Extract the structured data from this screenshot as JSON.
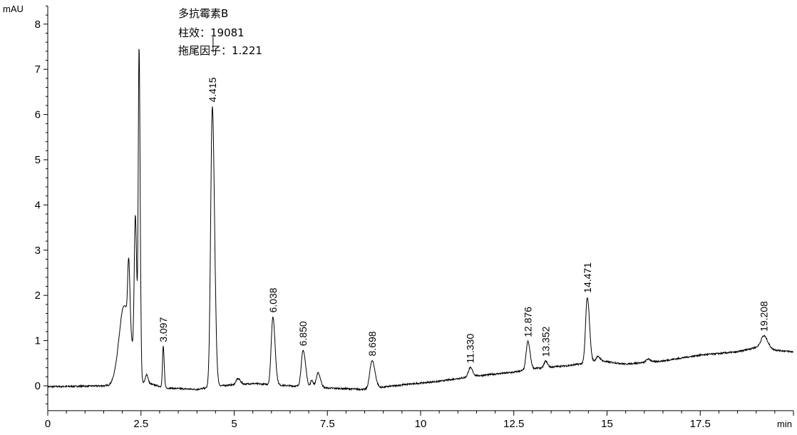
{
  "chart_data": {
    "type": "line",
    "ylabel": "mAU",
    "xlabel": "min",
    "xlim": [
      0,
      20
    ],
    "ylim": [
      -0.55,
      8.4
    ],
    "x_ticks": [
      "0",
      "2.5",
      "5",
      "7.5",
      "10",
      "12.5",
      "15",
      "17.5"
    ],
    "x_tick_values": [
      0,
      2.5,
      5,
      7.5,
      10,
      12.5,
      15,
      17.5
    ],
    "y_ticks": [
      "0",
      "1",
      "2",
      "3",
      "4",
      "5",
      "6",
      "7",
      "8"
    ],
    "y_tick_values": [
      0,
      1,
      2,
      3,
      4,
      5,
      6,
      7,
      8
    ],
    "grid": false,
    "line_color": "#000000",
    "annotation": {
      "lines": [
        "多抗霉素B",
        "柱效：19081",
        "拖尾因子：1.221"
      ],
      "peak": "4.415"
    },
    "baseline": [
      [
        0,
        -0.02
      ],
      [
        1.6,
        0
      ],
      [
        2.7,
        0.05
      ],
      [
        3.2,
        -0.05
      ],
      [
        4,
        -0.08
      ],
      [
        4.6,
        0
      ],
      [
        5.5,
        0.05
      ],
      [
        6.5,
        0.0
      ],
      [
        7.5,
        -0.05
      ],
      [
        8.5,
        -0.08
      ],
      [
        9.5,
        0.02
      ],
      [
        10.5,
        0.1
      ],
      [
        11.5,
        0.22
      ],
      [
        12.5,
        0.3
      ],
      [
        13,
        0.38
      ],
      [
        14,
        0.45
      ],
      [
        14.8,
        0.55
      ],
      [
        15.5,
        0.48
      ],
      [
        16.5,
        0.55
      ],
      [
        17.5,
        0.68
      ],
      [
        18.5,
        0.75
      ],
      [
        19,
        0.85
      ],
      [
        19.4,
        0.8
      ],
      [
        20,
        0.75
      ]
    ],
    "peaks": [
      {
        "rt": 2.05,
        "height": 1.75,
        "width": 0.14
      },
      {
        "rt": 2.17,
        "height": 1.4,
        "width": 0.025
      },
      {
        "rt": 2.35,
        "height": 3.3,
        "width": 0.03
      },
      {
        "rt": 2.45,
        "height": 7.2,
        "width": 0.022
      },
      {
        "rt": 2.65,
        "height": 0.2,
        "width": 0.03
      },
      {
        "rt": 3.097,
        "height": 0.9,
        "width": 0.02,
        "label": "3.097"
      },
      {
        "rt": 4.415,
        "height": 6.2,
        "width": 0.045,
        "label": "4.415"
      },
      {
        "rt": 5.1,
        "height": 0.13,
        "width": 0.05
      },
      {
        "rt": 6.038,
        "height": 1.5,
        "width": 0.045,
        "label": "6.038"
      },
      {
        "rt": 6.85,
        "height": 0.8,
        "width": 0.05,
        "label": "6.850"
      },
      {
        "rt": 7.08,
        "height": 0.15,
        "width": 0.03
      },
      {
        "rt": 7.25,
        "height": 0.32,
        "width": 0.05
      },
      {
        "rt": 8.698,
        "height": 0.62,
        "width": 0.06,
        "label": "8.698"
      },
      {
        "rt": 11.33,
        "height": 0.2,
        "width": 0.05,
        "label": "11.330"
      },
      {
        "rt": 12.876,
        "height": 0.62,
        "width": 0.045,
        "label": "12.876"
      },
      {
        "rt": 13.352,
        "height": 0.14,
        "width": 0.04,
        "label": "13.352"
      },
      {
        "rt": 14.471,
        "height": 1.45,
        "width": 0.045,
        "label": "14.471"
      },
      {
        "rt": 14.75,
        "height": 0.1,
        "width": 0.05
      },
      {
        "rt": 16.1,
        "height": 0.07,
        "width": 0.05
      },
      {
        "rt": 19.208,
        "height": 0.28,
        "width": 0.08,
        "label": "19.208"
      }
    ]
  }
}
